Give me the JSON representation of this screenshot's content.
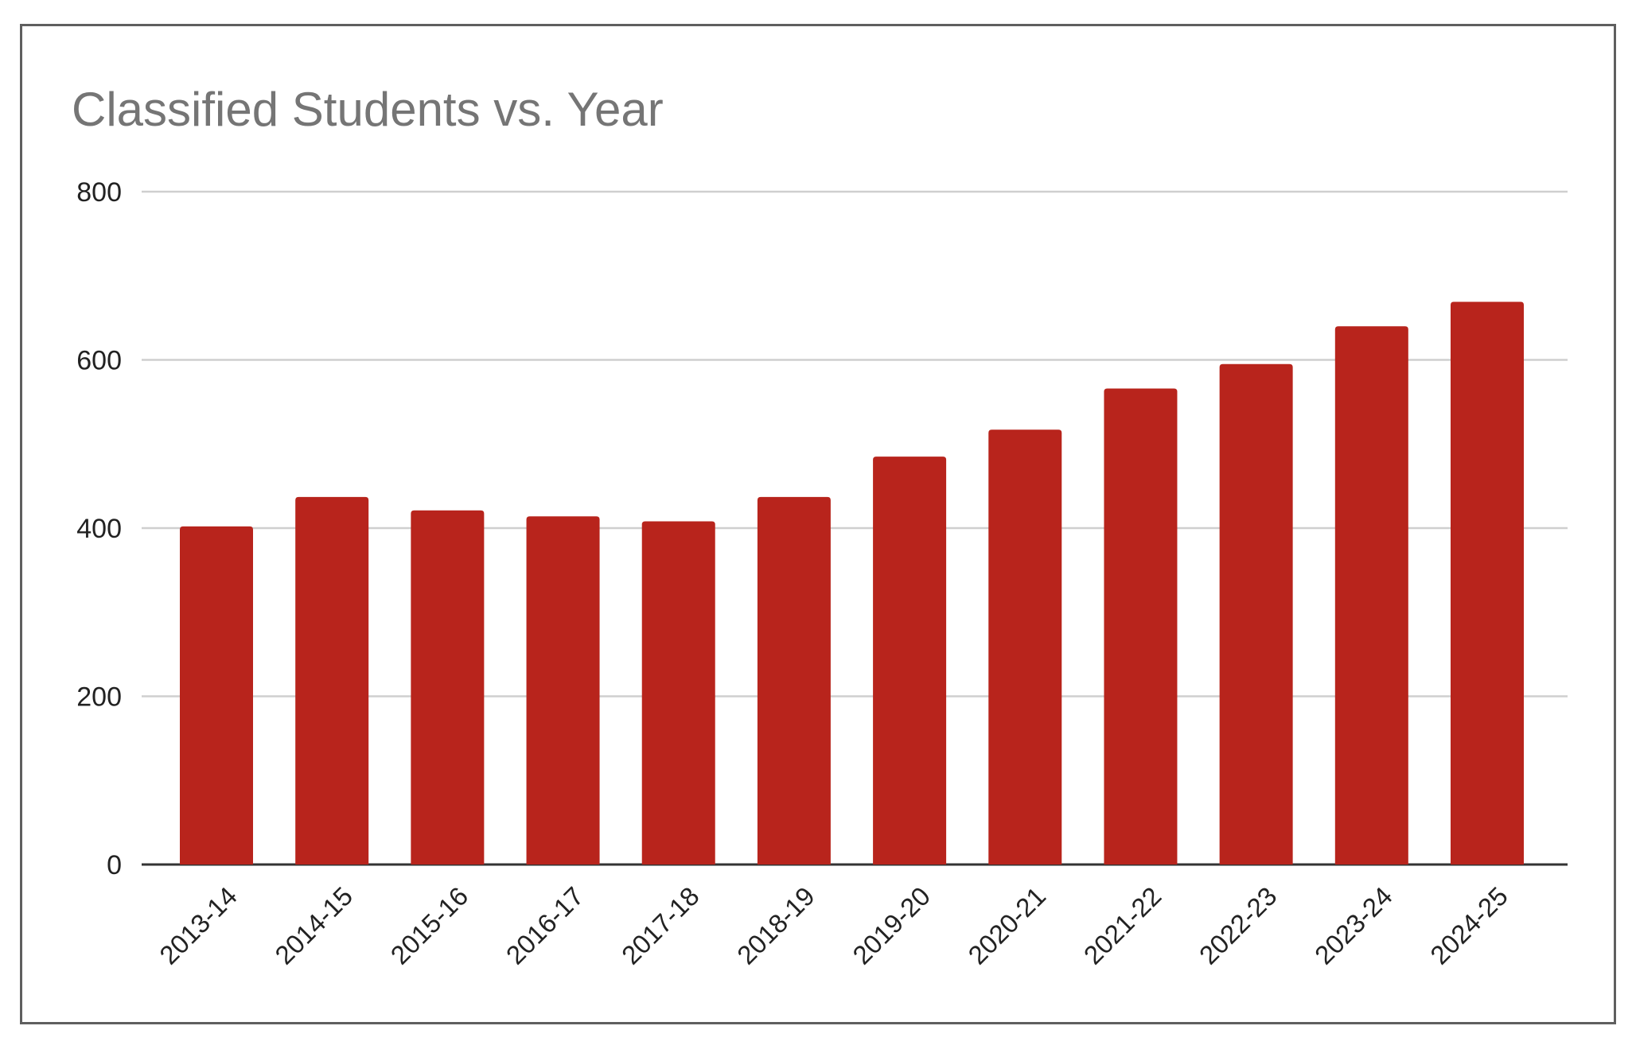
{
  "chart_data": {
    "type": "bar",
    "title": "Classified Students vs. Year",
    "xlabel": "",
    "ylabel": "",
    "categories": [
      "2013-14",
      "2014-15",
      "2015-16",
      "2016-17",
      "2017-18",
      "2018-19",
      "2019-20",
      "2020-21",
      "2021-22",
      "2022-23",
      "2023-24",
      "2024-25"
    ],
    "values": [
      402,
      437,
      421,
      414,
      408,
      437,
      485,
      517,
      566,
      595,
      640,
      669
    ],
    "ylim": [
      0,
      800
    ],
    "yticks": [
      0,
      200,
      400,
      600,
      800
    ],
    "grid": true,
    "legend": "none",
    "bar_color": "#b8241c",
    "title_color": "#757575"
  }
}
